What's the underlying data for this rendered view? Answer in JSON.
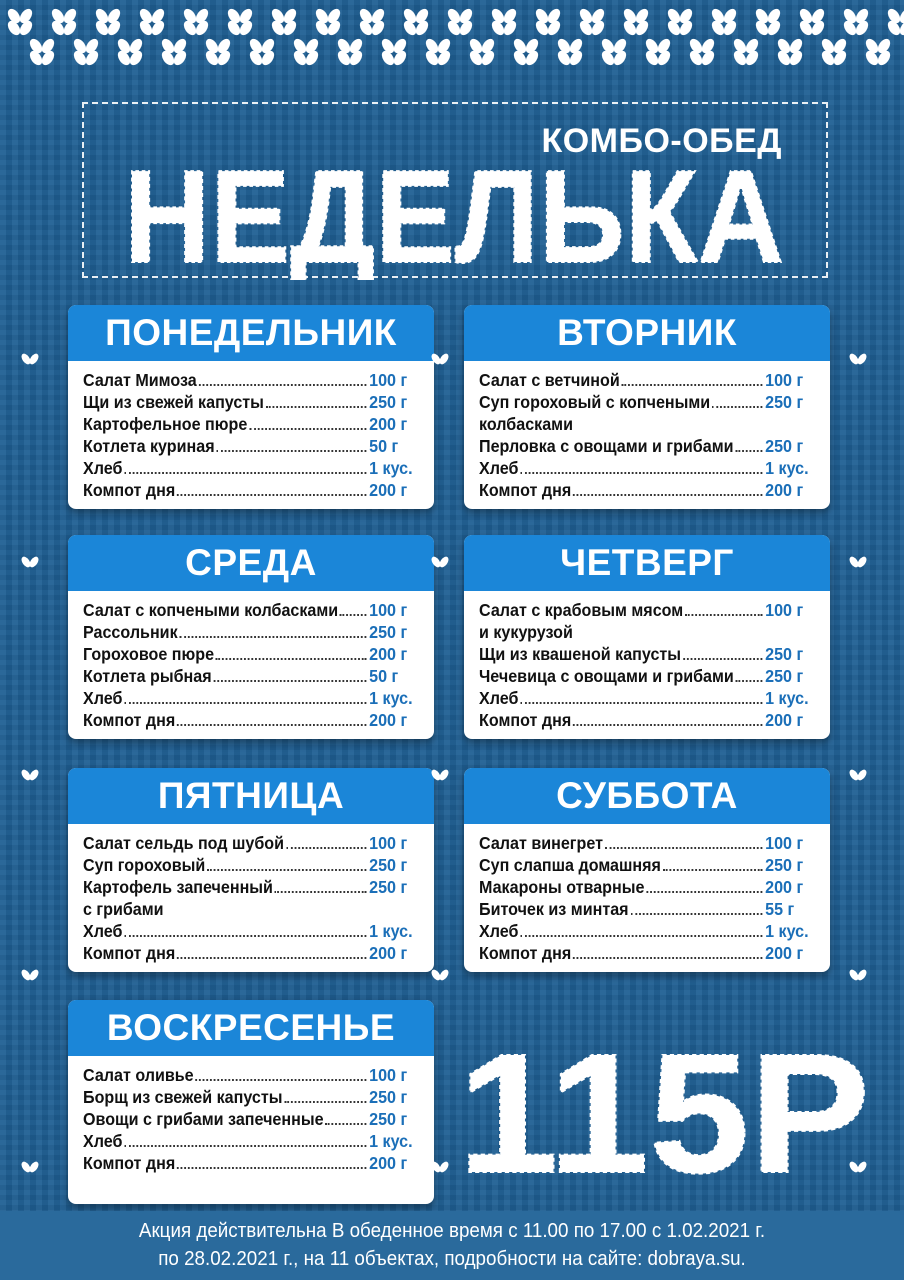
{
  "header": {
    "subtitle": "КОМБО-ОБЕД",
    "title": "НЕДЕЛЬКА"
  },
  "price": "115Р",
  "colors": {
    "background": "#1f5f93",
    "card_header": "#1b86d8",
    "weight_text": "#1b6fb8"
  },
  "days": [
    {
      "name": "ПОНЕДЕЛЬНИК",
      "items": [
        {
          "name": "Салат Мимоза",
          "weight": "100 г"
        },
        {
          "name": "Щи из свежей капусты",
          "weight": "250 г"
        },
        {
          "name": "Картофельное пюре",
          "weight": "200 г"
        },
        {
          "name": "Котлета куриная",
          "weight": "50 г"
        },
        {
          "name": "Хлеб",
          "weight": "1 кус."
        },
        {
          "name": "Компот дня",
          "weight": "200 г"
        }
      ]
    },
    {
      "name": "ВТОРНИК",
      "items": [
        {
          "name": "Салат с ветчиной",
          "weight": "100 г"
        },
        {
          "name": "Суп гороховый с копчеными",
          "continuation": "колбасками",
          "weight": "250 г"
        },
        {
          "name": "Перловка с овощами и грибами",
          "weight": "250 г"
        },
        {
          "name": "Хлеб",
          "weight": "1 кус."
        },
        {
          "name": "Компот дня",
          "weight": "200 г"
        }
      ]
    },
    {
      "name": "СРЕДА",
      "items": [
        {
          "name": "Салат с копчеными колбасками",
          "weight": "100 г"
        },
        {
          "name": "Рассольник",
          "weight": "250 г"
        },
        {
          "name": "Гороховое пюре",
          "weight": "200 г"
        },
        {
          "name": "Котлета рыбная",
          "weight": "50 г"
        },
        {
          "name": "Хлеб",
          "weight": "1 кус."
        },
        {
          "name": "Компот дня",
          "weight": "200 г"
        }
      ]
    },
    {
      "name": "ЧЕТВЕРГ",
      "items": [
        {
          "name": "Салат с крабовым мясом",
          "continuation": "и кукурузой",
          "weight": "100 г"
        },
        {
          "name": "Щи из квашеной капусты",
          "weight": "250 г"
        },
        {
          "name": "Чечевица с овощами и грибами",
          "weight": "250 г"
        },
        {
          "name": "Хлеб",
          "weight": "1 кус."
        },
        {
          "name": "Компот дня",
          "weight": "200 г"
        }
      ]
    },
    {
      "name": "ПЯТНИЦА",
      "items": [
        {
          "name": "Салат сельдь под шубой",
          "weight": "100 г"
        },
        {
          "name": "Суп гороховый",
          "weight": "250 г"
        },
        {
          "name": "Картофель запеченный",
          "continuation": "с грибами",
          "weight": "250 г"
        },
        {
          "name": "Хлеб",
          "weight": "1 кус."
        },
        {
          "name": "Компот дня",
          "weight": "200 г"
        }
      ]
    },
    {
      "name": "СУББОТА",
      "items": [
        {
          "name": "Салат винегрет",
          "weight": "100 г"
        },
        {
          "name": "Суп слапша домашняя",
          "weight": "250 г"
        },
        {
          "name": "Макароны отварные",
          "weight": "200 г"
        },
        {
          "name": "Биточек из минтая",
          "weight": "55 г"
        },
        {
          "name": "Хлеб",
          "weight": "1 кус."
        },
        {
          "name": "Компот дня",
          "weight": "200 г"
        }
      ]
    },
    {
      "name": "ВОСКРЕСЕНЬЕ",
      "items": [
        {
          "name": "Салат оливье",
          "weight": "100 г"
        },
        {
          "name": "Борщ из свежей капусты",
          "weight": "250 г"
        },
        {
          "name": "Овощи с грибами запеченные",
          "weight": "250 г"
        },
        {
          "name": "Хлеб",
          "weight": "1 кус."
        },
        {
          "name": "Компот дня",
          "weight": "200 г"
        }
      ]
    }
  ],
  "footer": {
    "line1": "Акция действительна В обеденное время с 11.00 по 17.00 с 1.02.2021 г.",
    "line2": "по 28.02.2021 г., на 11 объектах, подробности на сайте: dobraya.su."
  }
}
